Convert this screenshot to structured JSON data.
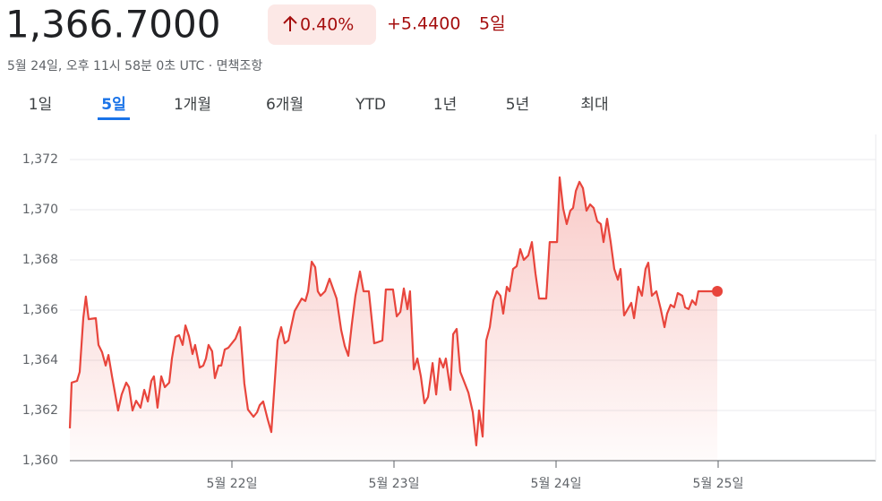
{
  "header": {
    "price": "1,366.7000",
    "change_pct": "0.40%",
    "change": "+5.4400",
    "period": "5일",
    "timestamp": "5월 24일, 오후 11시 58분 0초 UTC · 면책조항"
  },
  "tabs": {
    "items": [
      "1일",
      "5일",
      "1개월",
      "6개월",
      "YTD",
      "1년",
      "5년",
      "최대"
    ],
    "selected": 1
  },
  "chart_data": {
    "type": "line",
    "grid": true,
    "xlim": [
      21,
      26
    ],
    "xticks": [
      {
        "value": 22,
        "label": "5월 22일"
      },
      {
        "value": 23,
        "label": "5월 23일"
      },
      {
        "value": 24,
        "label": "5월 24일"
      },
      {
        "value": 25,
        "label": "5월 25일"
      }
    ],
    "ylim": [
      1360,
      1373
    ],
    "yticks": [
      {
        "value": 1360,
        "label": "1,360"
      },
      {
        "value": 1362,
        "label": "1,362"
      },
      {
        "value": 1364,
        "label": "1,364"
      },
      {
        "value": 1366,
        "label": "1,366"
      },
      {
        "value": 1368,
        "label": "1,368"
      },
      {
        "value": 1370,
        "label": "1,370"
      },
      {
        "value": 1372,
        "label": "1,372"
      }
    ],
    "x": [
      21.0,
      21.011,
      21.044,
      21.061,
      21.083,
      21.099,
      21.116,
      21.16,
      21.177,
      21.199,
      21.221,
      21.238,
      21.26,
      21.298,
      21.32,
      21.348,
      21.365,
      21.387,
      21.409,
      21.436,
      21.459,
      21.481,
      21.503,
      21.519,
      21.541,
      21.564,
      21.586,
      21.613,
      21.63,
      21.652,
      21.674,
      21.696,
      21.713,
      21.735,
      21.757,
      21.773,
      21.801,
      21.823,
      21.84,
      21.856,
      21.878,
      21.895,
      21.917,
      21.934,
      21.956,
      21.978,
      22.022,
      22.05,
      22.077,
      22.099,
      22.133,
      22.155,
      22.171,
      22.193,
      22.221,
      22.243,
      22.282,
      22.304,
      22.326,
      22.348,
      22.365,
      22.387,
      22.409,
      22.431,
      22.453,
      22.47,
      22.492,
      22.514,
      22.53,
      22.547,
      22.575,
      22.602,
      22.646,
      22.674,
      22.696,
      22.718,
      22.74,
      22.762,
      22.79,
      22.812,
      22.845,
      22.878,
      22.895,
      22.928,
      22.95,
      22.994,
      23.017,
      23.039,
      23.061,
      23.083,
      23.099,
      23.122,
      23.144,
      23.166,
      23.188,
      23.21,
      23.238,
      23.26,
      23.282,
      23.304,
      23.32,
      23.348,
      23.365,
      23.387,
      23.409,
      23.431,
      23.459,
      23.486,
      23.508,
      23.525,
      23.547,
      23.569,
      23.591,
      23.613,
      23.635,
      23.657,
      23.674,
      23.696,
      23.713,
      23.735,
      23.757,
      23.779,
      23.801,
      23.829,
      23.851,
      23.873,
      23.895,
      23.939,
      23.961,
      24.006,
      24.022,
      24.044,
      24.066,
      24.088,
      24.105,
      24.122,
      24.144,
      24.166,
      24.188,
      24.21,
      24.232,
      24.254,
      24.276,
      24.293,
      24.315,
      24.337,
      24.359,
      24.381,
      24.398,
      24.42,
      24.442,
      24.464,
      24.481,
      24.508,
      24.53,
      24.552,
      24.569,
      24.591,
      24.619,
      24.646,
      24.669,
      24.685,
      24.707,
      24.729,
      24.751,
      24.779,
      24.796,
      24.818,
      24.84,
      24.862,
      24.878,
      24.995
    ],
    "series": [
      {
        "color": "#e8453c",
        "values": [
          1361.29,
          1363.11,
          1363.18,
          1363.54,
          1365.68,
          1366.54,
          1365.64,
          1365.68,
          1364.61,
          1364.32,
          1363.79,
          1364.21,
          1363.36,
          1362.0,
          1362.64,
          1363.11,
          1362.93,
          1362.0,
          1362.39,
          1362.11,
          1362.82,
          1362.36,
          1363.18,
          1363.36,
          1362.11,
          1363.36,
          1362.93,
          1363.11,
          1364.07,
          1364.93,
          1365.0,
          1364.61,
          1365.39,
          1364.96,
          1364.25,
          1364.61,
          1363.71,
          1363.79,
          1364.07,
          1364.61,
          1364.36,
          1363.29,
          1363.79,
          1363.79,
          1364.43,
          1364.5,
          1364.86,
          1365.32,
          1363.07,
          1362.04,
          1361.75,
          1361.93,
          1362.21,
          1362.36,
          1361.64,
          1361.14,
          1364.79,
          1365.32,
          1364.68,
          1364.79,
          1365.32,
          1365.96,
          1366.21,
          1366.46,
          1366.36,
          1366.75,
          1367.93,
          1367.71,
          1366.75,
          1366.57,
          1366.75,
          1367.25,
          1366.46,
          1365.21,
          1364.57,
          1364.18,
          1365.43,
          1366.57,
          1367.54,
          1366.75,
          1366.75,
          1364.68,
          1364.71,
          1364.79,
          1366.82,
          1366.82,
          1365.75,
          1365.93,
          1366.86,
          1366.04,
          1366.75,
          1363.64,
          1364.07,
          1363.36,
          1362.29,
          1362.54,
          1363.89,
          1362.64,
          1364.07,
          1363.71,
          1364.07,
          1362.82,
          1365.04,
          1365.25,
          1363.54,
          1363.18,
          1362.71,
          1361.93,
          1360.61,
          1362.0,
          1360.96,
          1364.79,
          1365.32,
          1366.39,
          1366.75,
          1366.57,
          1365.86,
          1366.93,
          1366.75,
          1367.64,
          1367.75,
          1368.43,
          1368.0,
          1368.18,
          1368.71,
          1367.46,
          1366.46,
          1366.46,
          1368.71,
          1368.71,
          1371.29,
          1370.04,
          1369.43,
          1369.96,
          1370.07,
          1370.75,
          1371.11,
          1370.86,
          1369.96,
          1370.21,
          1370.07,
          1369.54,
          1369.43,
          1368.71,
          1369.64,
          1368.71,
          1367.64,
          1367.21,
          1367.64,
          1365.79,
          1366.04,
          1366.29,
          1365.68,
          1366.93,
          1366.57,
          1367.64,
          1367.89,
          1366.57,
          1366.75,
          1366.04,
          1365.32,
          1365.86,
          1366.21,
          1366.11,
          1366.68,
          1366.57,
          1366.11,
          1366.04,
          1366.39,
          1366.21,
          1366.75,
          1366.75
        ]
      }
    ]
  }
}
